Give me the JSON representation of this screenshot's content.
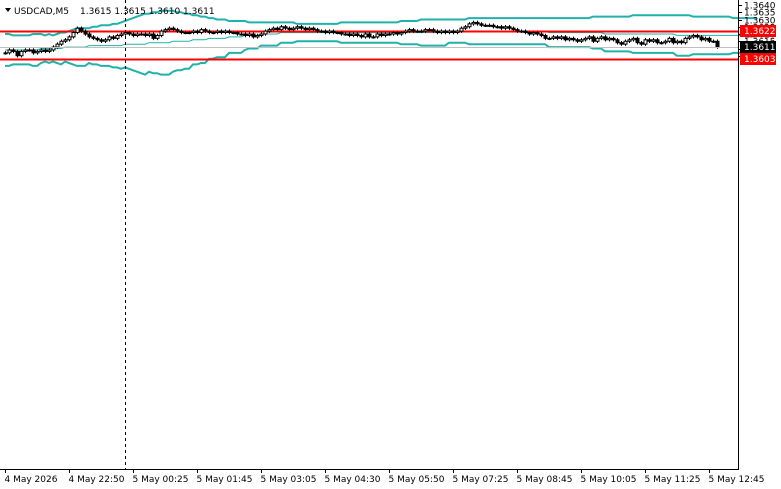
{
  "chart_data": {
    "type": "candlestick",
    "symbol_label": "USDCAD,M5",
    "ohlc_label": "1.3615 1.3615 1.3610 1.3611",
    "ylim": [
      1.36,
      1.364
    ],
    "y_ticks": [
      "1.3640",
      "1.3635",
      "1.3630",
      "1.3625",
      "1.3620",
      "1.3615",
      "1.3610",
      "1.3605"
    ],
    "x_ticks": [
      {
        "label": "4 May 2026",
        "bar": 0
      },
      {
        "label": "4 May 22:50",
        "bar": 16
      },
      {
        "label": "5 May 00:25",
        "bar": 32
      },
      {
        "label": "5 May 01:45",
        "bar": 48
      },
      {
        "label": "5 May 03:05",
        "bar": 64
      },
      {
        "label": "5 May 04:30",
        "bar": 80
      },
      {
        "label": "5 May 05:50",
        "bar": 96
      },
      {
        "label": "5 May 07:25",
        "bar": 112
      },
      {
        "label": "5 May 08:45",
        "bar": 128
      },
      {
        "label": "5 May 10:05",
        "bar": 144
      },
      {
        "label": "5 May 11:25",
        "bar": 160
      },
      {
        "label": "5 May 12:45",
        "bar": 176
      }
    ],
    "horizontal_levels": [
      {
        "value": 1.3622,
        "label": "1.3622",
        "color": "#ff0000"
      },
      {
        "value": 1.3603,
        "label": "1.3603",
        "color": "#ff0000"
      }
    ],
    "current_price": {
      "value": 1.3611,
      "label": "1.3611"
    },
    "vertical_marker_bar": 30,
    "colors": {
      "candle": "#000000",
      "bands": "#20b2aa",
      "level": "#ff0000",
      "grid": "#c0c0c0"
    },
    "close": [
      1.3607,
      1.3609,
      1.3608,
      1.3605,
      1.3608,
      1.3609,
      1.3609,
      1.3607,
      1.3608,
      1.3609,
      1.3608,
      1.3609,
      1.3611,
      1.3613,
      1.3615,
      1.3616,
      1.3618,
      1.3621,
      1.3624,
      1.3622,
      1.362,
      1.3618,
      1.3617,
      1.3616,
      1.3615,
      1.3616,
      1.3618,
      1.3617,
      1.3619,
      1.362,
      1.3621,
      1.362,
      1.3619,
      1.362,
      1.362,
      1.3619,
      1.362,
      1.3617,
      1.3619,
      1.3622,
      1.3623,
      1.3624,
      1.3623,
      1.3622,
      1.3621,
      1.3621,
      1.3621,
      1.3622,
      1.3621,
      1.3623,
      1.3622,
      1.3621,
      1.3621,
      1.3622,
      1.3621,
      1.3622,
      1.3621,
      1.3621,
      1.362,
      1.362,
      1.3619,
      1.362,
      1.3618,
      1.3619,
      1.362,
      1.3622,
      1.3623,
      1.3624,
      1.3623,
      1.3625,
      1.3624,
      1.3623,
      1.3624,
      1.3625,
      1.3624,
      1.3623,
      1.3624,
      1.3623,
      1.3622,
      1.3622,
      1.3621,
      1.3622,
      1.3621,
      1.3621,
      1.362,
      1.362,
      1.3619,
      1.362,
      1.3619,
      1.3618,
      1.362,
      1.3618,
      1.3618,
      1.362,
      1.3619,
      1.362,
      1.362,
      1.3621,
      1.362,
      1.3621,
      1.3622,
      1.3623,
      1.3622,
      1.3622,
      1.3622,
      1.3623,
      1.3623,
      1.3622,
      1.3621,
      1.3622,
      1.3621,
      1.3622,
      1.3621,
      1.3622,
      1.3624,
      1.3625,
      1.3627,
      1.3628,
      1.3627,
      1.3626,
      1.3626,
      1.3626,
      1.3625,
      1.3625,
      1.3624,
      1.3625,
      1.3624,
      1.3623,
      1.3622,
      1.3622,
      1.3621,
      1.362,
      1.3621,
      1.362,
      1.3619,
      1.3617,
      1.3617,
      1.3618,
      1.3617,
      1.3618,
      1.3616,
      1.3617,
      1.3616,
      1.3615,
      1.3616,
      1.3617,
      1.3618,
      1.3615,
      1.3617,
      1.3618,
      1.3616,
      1.3617,
      1.3616,
      1.3614,
      1.3613,
      1.3615,
      1.3616,
      1.3617,
      1.3614,
      1.3613,
      1.3616,
      1.3615,
      1.3616,
      1.3614,
      1.3614,
      1.3615,
      1.3617,
      1.3614,
      1.3615,
      1.3614,
      1.3617,
      1.3618,
      1.3619,
      1.3618,
      1.3616,
      1.3617,
      1.3615,
      1.3615,
      1.3611
    ],
    "bollinger_upper": [
      1.362,
      1.362,
      1.3619,
      1.3619,
      1.3619,
      1.3619,
      1.3619,
      1.362,
      1.362,
      1.362,
      1.3619,
      1.362,
      1.3619,
      1.362,
      1.3621,
      1.3621,
      1.3622,
      1.3623,
      1.3624,
      1.3624,
      1.3624,
      1.3624,
      1.3625,
      1.3625,
      1.3626,
      1.3626,
      1.3626,
      1.3627,
      1.3627,
      1.3628,
      1.3629,
      1.363,
      1.3631,
      1.3632,
      1.3633,
      1.3634,
      1.3634,
      1.3635,
      1.3635,
      1.3636,
      1.3636,
      1.3636,
      1.3636,
      1.3635,
      1.3635,
      1.3634,
      1.3634,
      1.3633,
      1.3633,
      1.3632,
      1.3632,
      1.3631,
      1.3631,
      1.363,
      1.363,
      1.363,
      1.3629,
      1.3629,
      1.3629,
      1.3629,
      1.3629,
      1.3628,
      1.3628,
      1.3628,
      1.3628,
      1.3628,
      1.3628,
      1.3628,
      1.3628,
      1.3628,
      1.3628,
      1.3628,
      1.3628,
      1.3627,
      1.3627,
      1.3627,
      1.3627,
      1.3627,
      1.3627,
      1.3627,
      1.3627,
      1.3627,
      1.3627,
      1.3627,
      1.3628,
      1.3628,
      1.3628,
      1.3628,
      1.3628,
      1.3628,
      1.3628,
      1.3628,
      1.3628,
      1.3628,
      1.3628,
      1.3628,
      1.3628,
      1.3628,
      1.3628,
      1.3629,
      1.3629,
      1.3629,
      1.3629,
      1.3629,
      1.363,
      1.363,
      1.363,
      1.363,
      1.363,
      1.363,
      1.363,
      1.363,
      1.363,
      1.363,
      1.363,
      1.363,
      1.3631,
      1.3631,
      1.3631,
      1.3631,
      1.3631,
      1.3631,
      1.3631,
      1.3631,
      1.3631,
      1.3631,
      1.3631,
      1.3631,
      1.3631,
      1.3631,
      1.3631,
      1.3631,
      1.3631,
      1.3631,
      1.3631,
      1.3631,
      1.3631,
      1.3631,
      1.3631,
      1.3631,
      1.3631,
      1.3631,
      1.3631,
      1.3631,
      1.3631,
      1.3631,
      1.3631,
      1.3632,
      1.3632,
      1.3632,
      1.3632,
      1.3632,
      1.3632,
      1.3632,
      1.3632,
      1.3632,
      1.3632,
      1.3633,
      1.3633,
      1.3633,
      1.3633,
      1.3633,
      1.3633,
      1.3633,
      1.3633,
      1.3633,
      1.3633,
      1.3633,
      1.3633,
      1.3633,
      1.3633,
      1.3633,
      1.3632,
      1.3632,
      1.3632,
      1.3632,
      1.3632,
      1.3632,
      1.3632,
      1.3632,
      1.3632,
      1.3632,
      1.3631,
      1.3631,
      1.3631,
      1.3631,
      1.3631,
      1.3631,
      1.3631
    ],
    "bollinger_middle": [
      1.3609,
      1.3609,
      1.3609,
      1.3609,
      1.3609,
      1.3609,
      1.3609,
      1.3609,
      1.3609,
      1.361,
      1.361,
      1.361,
      1.361,
      1.361,
      1.361,
      1.3611,
      1.3611,
      1.3611,
      1.3611,
      1.3611,
      1.3611,
      1.3612,
      1.3612,
      1.3612,
      1.3612,
      1.3612,
      1.3612,
      1.3612,
      1.3612,
      1.3612,
      1.3613,
      1.3613,
      1.3613,
      1.3613,
      1.3613,
      1.3613,
      1.3614,
      1.3614,
      1.3614,
      1.3614,
      1.3614,
      1.3614,
      1.3615,
      1.3615,
      1.3615,
      1.3615,
      1.3615,
      1.3616,
      1.3616,
      1.3616,
      1.3616,
      1.3617,
      1.3617,
      1.3617,
      1.3617,
      1.3617,
      1.3618,
      1.3618,
      1.3618,
      1.3618,
      1.3619,
      1.3619,
      1.3619,
      1.3619,
      1.362,
      1.362,
      1.362,
      1.362,
      1.362,
      1.3621,
      1.3621,
      1.3621,
      1.3621,
      1.3621,
      1.3621,
      1.3621,
      1.3621,
      1.3621,
      1.3621,
      1.3621,
      1.3621,
      1.3621,
      1.3621,
      1.3621,
      1.3621,
      1.3621,
      1.3621,
      1.3621,
      1.3621,
      1.3621,
      1.3621,
      1.3621,
      1.3621,
      1.3621,
      1.3621,
      1.3621,
      1.3621,
      1.3621,
      1.3621,
      1.3621,
      1.3621,
      1.3621,
      1.3621,
      1.3621,
      1.3621,
      1.3621,
      1.3621,
      1.3621,
      1.3621,
      1.3621,
      1.3621,
      1.3622,
      1.3622,
      1.3622,
      1.3622,
      1.3622,
      1.3622,
      1.3622,
      1.3622,
      1.3622,
      1.3622,
      1.3622,
      1.3622,
      1.3622,
      1.3622,
      1.3622,
      1.3622,
      1.3622,
      1.3622,
      1.3622,
      1.3622,
      1.3622,
      1.3622,
      1.3622,
      1.3622,
      1.3622,
      1.3621,
      1.3621,
      1.3621,
      1.3621,
      1.3621,
      1.3621,
      1.3621,
      1.3621,
      1.3621,
      1.3621,
      1.3621,
      1.3621,
      1.3621,
      1.3621,
      1.362,
      1.362,
      1.362,
      1.362,
      1.362,
      1.362,
      1.362,
      1.362,
      1.362,
      1.362,
      1.362,
      1.362,
      1.362,
      1.362,
      1.362,
      1.362,
      1.362,
      1.362,
      1.3619,
      1.3619,
      1.3619,
      1.3619,
      1.3619,
      1.3619,
      1.3619,
      1.3619,
      1.3619,
      1.3619,
      1.3619,
      1.3619,
      1.3619,
      1.3619,
      1.3619,
      1.3619,
      1.3619,
      1.3619,
      1.3618,
      1.3618,
      1.3618
    ],
    "bollinger_lower": [
      1.3598,
      1.3598,
      1.3599,
      1.3599,
      1.3599,
      1.3599,
      1.3599,
      1.3598,
      1.3598,
      1.36,
      1.3601,
      1.36,
      1.3601,
      1.36,
      1.3599,
      1.3601,
      1.36,
      1.3599,
      1.3598,
      1.3598,
      1.3598,
      1.36,
      1.3599,
      1.3599,
      1.3598,
      1.3598,
      1.3598,
      1.3597,
      1.3597,
      1.3596,
      1.3597,
      1.3596,
      1.3595,
      1.3594,
      1.3593,
      1.3592,
      1.3594,
      1.3593,
      1.3593,
      1.3592,
      1.3592,
      1.3592,
      1.3594,
      1.3595,
      1.3595,
      1.3596,
      1.3596,
      1.3599,
      1.3599,
      1.36,
      1.36,
      1.3603,
      1.3603,
      1.3604,
      1.3604,
      1.3604,
      1.3607,
      1.3607,
      1.3607,
      1.3607,
      1.3609,
      1.361,
      1.361,
      1.361,
      1.3612,
      1.3612,
      1.3612,
      1.3612,
      1.3612,
      1.3614,
      1.3614,
      1.3614,
      1.3614,
      1.3615,
      1.3615,
      1.3615,
      1.3615,
      1.3615,
      1.3615,
      1.3615,
      1.3615,
      1.3615,
      1.3615,
      1.3615,
      1.3614,
      1.3614,
      1.3614,
      1.3614,
      1.3614,
      1.3614,
      1.3614,
      1.3614,
      1.3614,
      1.3614,
      1.3614,
      1.3614,
      1.3614,
      1.3614,
      1.3614,
      1.3613,
      1.3613,
      1.3613,
      1.3613,
      1.3613,
      1.3612,
      1.3612,
      1.3612,
      1.3612,
      1.3612,
      1.3612,
      1.3612,
      1.3614,
      1.3614,
      1.3614,
      1.3614,
      1.3614,
      1.3613,
      1.3613,
      1.3613,
      1.3613,
      1.3613,
      1.3613,
      1.3613,
      1.3613,
      1.3613,
      1.3613,
      1.3613,
      1.3613,
      1.3613,
      1.3613,
      1.3613,
      1.3613,
      1.3613,
      1.3613,
      1.3613,
      1.3613,
      1.3611,
      1.3611,
      1.3611,
      1.3611,
      1.3611,
      1.3611,
      1.3611,
      1.3611,
      1.3611,
      1.3611,
      1.3611,
      1.361,
      1.361,
      1.361,
      1.3608,
      1.3608,
      1.3608,
      1.3608,
      1.3608,
      1.3608,
      1.3608,
      1.3607,
      1.3607,
      1.3607,
      1.3607,
      1.3607,
      1.3607,
      1.3607,
      1.3607,
      1.3607,
      1.3607,
      1.3607,
      1.3605,
      1.3605,
      1.3605,
      1.3605,
      1.3606,
      1.3606,
      1.3606,
      1.3606,
      1.3606,
      1.3606,
      1.3606,
      1.3606,
      1.3606,
      1.3606,
      1.3607,
      1.3607,
      1.3607,
      1.3607,
      1.3607,
      1.3605,
      1.3605
    ]
  }
}
